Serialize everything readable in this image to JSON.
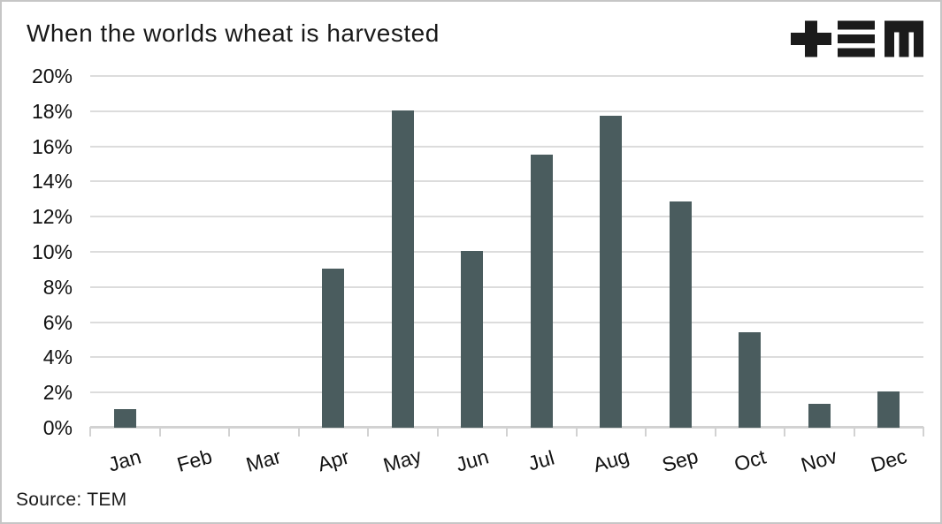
{
  "header": {
    "title": "When the worlds wheat is harvested",
    "logo_name": "TEM"
  },
  "footer": {
    "source_label": "Source: TEM"
  },
  "chart_data": {
    "type": "bar",
    "title": "When the worlds wheat is harvested",
    "categories": [
      "Jan",
      "Feb",
      "Mar",
      "Apr",
      "May",
      "Jun",
      "Jul",
      "Aug",
      "Sep",
      "Oct",
      "Nov",
      "Dec"
    ],
    "values": [
      1.0,
      0,
      0,
      9.0,
      18.0,
      10.0,
      15.5,
      17.7,
      12.8,
      5.4,
      1.3,
      2.0
    ],
    "y_tick_labels": [
      "20%",
      "18%",
      "16%",
      "14%",
      "12%",
      "10%",
      "8%",
      "6%",
      "4%",
      "2%",
      "0%"
    ],
    "y_tick_values": [
      20,
      18,
      16,
      14,
      12,
      10,
      8,
      6,
      4,
      2,
      0
    ],
    "ylim": [
      0,
      20
    ],
    "xlabel": "",
    "ylabel": "",
    "grid": true,
    "legend": false,
    "source": "Source: TEM",
    "colors": {
      "bar": "#4a5c5e",
      "gridline": "#dcdcdc",
      "axis": "#d2d2d2",
      "text": "#1a1a1a",
      "logo": "#1b1b1b",
      "frame_border": "#c6c6c6"
    }
  }
}
